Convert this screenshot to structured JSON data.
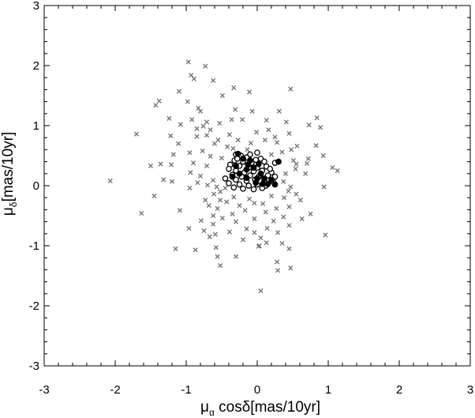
{
  "chart_data": {
    "type": "scatter",
    "title": "",
    "xlabel": {
      "greek": "μ",
      "sub": "α",
      "rest": " cosδ[mas/10yr]"
    },
    "ylabel": {
      "greek": "μ",
      "sub": "δ",
      "rest": "[mas/10yr]"
    },
    "xlim": [
      -3,
      3
    ],
    "ylim": [
      -3,
      3
    ],
    "x_ticks": [
      "-3",
      "-2",
      "-1",
      "0",
      "1",
      "2",
      "3"
    ],
    "y_ticks": [
      "-3",
      "-2",
      "-1",
      "0",
      "1",
      "2",
      "3"
    ],
    "grid": false,
    "series": [
      {
        "marker": "x",
        "color": "#777777",
        "points": [
          [
            -0.97,
            2.06
          ],
          [
            -0.73,
            1.99
          ],
          [
            -0.93,
            1.84
          ],
          [
            -0.89,
            1.78
          ],
          [
            -0.62,
            1.75
          ],
          [
            -0.33,
            1.63
          ],
          [
            0.47,
            1.61
          ],
          [
            -0.11,
            1.56
          ],
          [
            -1.1,
            1.57
          ],
          [
            -0.49,
            1.5
          ],
          [
            -1.38,
            1.41
          ],
          [
            -0.98,
            1.4
          ],
          [
            -1.43,
            1.34
          ],
          [
            -0.83,
            1.29
          ],
          [
            -0.8,
            1.24
          ],
          [
            -0.31,
            1.27
          ],
          [
            -0.07,
            1.24
          ],
          [
            0.31,
            1.24
          ],
          [
            0.84,
            1.13
          ],
          [
            -1.24,
            1.12
          ],
          [
            -0.92,
            1.1
          ],
          [
            -0.36,
            1.1
          ],
          [
            -0.21,
            1.1
          ],
          [
            0.13,
            1.09
          ],
          [
            0.41,
            1.06
          ],
          [
            0.73,
            1.01
          ],
          [
            -0.71,
            1.06
          ],
          [
            -0.53,
            1.04
          ],
          [
            -1.08,
            1.02
          ],
          [
            0.89,
            0.97
          ],
          [
            -0.85,
            0.95
          ],
          [
            -0.76,
            0.99
          ],
          [
            -0.66,
            0.93
          ],
          [
            0.16,
            0.93
          ],
          [
            -0.01,
            0.89
          ],
          [
            0.45,
            0.87
          ],
          [
            -0.39,
            0.85
          ],
          [
            -1.7,
            0.86
          ],
          [
            -1.22,
            0.83
          ],
          [
            -0.71,
            0.84
          ],
          [
            0.25,
            0.81
          ],
          [
            -0.85,
            0.82
          ],
          [
            0.11,
            0.76
          ],
          [
            -0.55,
            0.76
          ],
          [
            -0.27,
            0.76
          ],
          [
            -0.6,
            0.7
          ],
          [
            -1.11,
            0.7
          ],
          [
            0.28,
            0.72
          ],
          [
            -0.09,
            0.71
          ],
          [
            0.56,
            0.66
          ],
          [
            -0.42,
            0.65
          ],
          [
            0.83,
            0.67
          ],
          [
            -0.34,
            0.62
          ],
          [
            0.48,
            0.6
          ],
          [
            -0.14,
            0.6
          ],
          [
            -0.77,
            0.58
          ],
          [
            0.35,
            0.56
          ],
          [
            -0.95,
            0.55
          ],
          [
            -1.18,
            0.52
          ],
          [
            0.2,
            0.52
          ],
          [
            -0.66,
            0.49
          ],
          [
            -0.5,
            0.46
          ],
          [
            0.93,
            0.5
          ],
          [
            0.72,
            0.45
          ],
          [
            0.51,
            0.42
          ],
          [
            0.55,
            0.36
          ],
          [
            -1.36,
            0.36
          ],
          [
            -1.5,
            0.33
          ],
          [
            -0.9,
            0.38
          ],
          [
            -1.21,
            0.35
          ],
          [
            -0.71,
            0.33
          ],
          [
            0.7,
            0.37
          ],
          [
            1.06,
            0.3
          ],
          [
            0.54,
            0.28
          ],
          [
            1.13,
            0.25
          ],
          [
            -0.94,
            0.22
          ],
          [
            0.68,
            0.2
          ],
          [
            0.4,
            0.2
          ],
          [
            -0.8,
            0.16
          ],
          [
            -1.32,
            0.1
          ],
          [
            -1.2,
            0.07
          ],
          [
            -2.07,
            0.08
          ],
          [
            -0.62,
            0.09
          ],
          [
            0.37,
            0.07
          ],
          [
            -0.84,
            0.05
          ],
          [
            -0.7,
            0.01
          ],
          [
            -0.57,
            -0.02
          ],
          [
            0.47,
            -0.02
          ],
          [
            0.94,
            -0.02
          ],
          [
            -0.45,
            -0.04
          ],
          [
            -0.95,
            -0.04
          ],
          [
            -0.52,
            -0.1
          ],
          [
            0.44,
            -0.09
          ],
          [
            -0.61,
            -0.14
          ],
          [
            -1.45,
            -0.17
          ],
          [
            0.55,
            -0.14
          ],
          [
            -0.33,
            -0.19
          ],
          [
            0.2,
            -0.17
          ],
          [
            0.38,
            -0.2
          ],
          [
            -0.11,
            -0.22
          ],
          [
            -0.73,
            -0.24
          ],
          [
            -0.52,
            -0.24
          ],
          [
            0.61,
            -0.24
          ],
          [
            -0.43,
            -0.27
          ],
          [
            -0.04,
            -0.29
          ],
          [
            0.08,
            -0.3
          ],
          [
            -0.68,
            -0.33
          ],
          [
            -0.25,
            -0.33
          ],
          [
            0.45,
            -0.35
          ],
          [
            -0.56,
            -0.38
          ],
          [
            0.27,
            -0.38
          ],
          [
            -1.09,
            -0.41
          ],
          [
            -0.17,
            -0.41
          ],
          [
            0.12,
            -0.44
          ],
          [
            -1.63,
            -0.46
          ],
          [
            0.75,
            -0.47
          ],
          [
            -0.35,
            -0.47
          ],
          [
            -0.62,
            -0.5
          ],
          [
            0.37,
            -0.52
          ],
          [
            -0.49,
            -0.54
          ],
          [
            -0.04,
            -0.55
          ],
          [
            0.63,
            -0.55
          ],
          [
            -0.79,
            -0.58
          ],
          [
            0.23,
            -0.59
          ],
          [
            -0.3,
            -0.6
          ],
          [
            -0.62,
            -0.64
          ],
          [
            0.45,
            -0.66
          ],
          [
            -0.96,
            -0.71
          ],
          [
            -0.15,
            -0.72
          ],
          [
            0.14,
            -0.71
          ],
          [
            -0.75,
            -0.75
          ],
          [
            -0.39,
            -0.77
          ],
          [
            -0.04,
            -0.78
          ],
          [
            0.29,
            -0.78
          ],
          [
            0.96,
            -0.82
          ],
          [
            -0.59,
            -0.81
          ],
          [
            -0.67,
            -0.85
          ],
          [
            0.05,
            -0.87
          ],
          [
            -0.2,
            -0.9
          ],
          [
            0.13,
            -0.95
          ],
          [
            0.35,
            -0.96
          ],
          [
            0.03,
            -1.0
          ],
          [
            -0.58,
            -1.03
          ],
          [
            -0.87,
            -1.07
          ],
          [
            0.45,
            -1.05
          ],
          [
            -1.15,
            -1.05
          ],
          [
            0.02,
            -1.01
          ],
          [
            -0.56,
            -1.18
          ],
          [
            -0.3,
            -1.18
          ],
          [
            0.28,
            -1.27
          ],
          [
            -0.52,
            -1.33
          ],
          [
            0.47,
            -1.37
          ],
          [
            0.29,
            -1.41
          ],
          [
            0.05,
            -1.75
          ]
        ]
      },
      {
        "marker": "open-circle",
        "color": "#000000",
        "points": [
          [
            -0.3,
            0.52
          ],
          [
            -0.23,
            0.5
          ],
          [
            -0.1,
            0.52
          ],
          [
            0.0,
            0.55
          ],
          [
            -0.15,
            0.47
          ],
          [
            0.05,
            0.45
          ],
          [
            -0.32,
            0.42
          ],
          [
            -0.2,
            0.4
          ],
          [
            -0.08,
            0.38
          ],
          [
            0.1,
            0.4
          ],
          [
            0.25,
            0.38
          ],
          [
            -0.38,
            0.35
          ],
          [
            -0.25,
            0.33
          ],
          [
            -0.12,
            0.3
          ],
          [
            0.0,
            0.3
          ],
          [
            0.13,
            0.32
          ],
          [
            -0.4,
            0.28
          ],
          [
            -0.3,
            0.25
          ],
          [
            -0.18,
            0.22
          ],
          [
            -0.05,
            0.24
          ],
          [
            0.07,
            0.25
          ],
          [
            0.2,
            0.22
          ],
          [
            -0.35,
            0.18
          ],
          [
            -0.22,
            0.15
          ],
          [
            -0.1,
            0.17
          ],
          [
            0.02,
            0.15
          ],
          [
            0.15,
            0.17
          ],
          [
            0.25,
            0.15
          ],
          [
            -0.45,
            0.12
          ],
          [
            -0.3,
            0.1
          ],
          [
            -0.15,
            0.08
          ],
          [
            -0.03,
            0.1
          ],
          [
            0.1,
            0.08
          ],
          [
            0.22,
            0.07
          ],
          [
            -0.4,
            0.04
          ],
          [
            -0.25,
            0.02
          ],
          [
            -0.12,
            0.0
          ],
          [
            0.0,
            0.02
          ],
          [
            0.12,
            0.0
          ],
          [
            -0.33,
            -0.03
          ],
          [
            -0.2,
            -0.05
          ],
          [
            -0.05,
            -0.06
          ],
          [
            0.07,
            -0.04
          ],
          [
            -0.28,
            0.45
          ],
          [
            0.18,
            0.28
          ],
          [
            -0.02,
            0.43
          ]
        ]
      },
      {
        "marker": "filled-circle",
        "color": "#000000",
        "points": [
          [
            -0.27,
            0.53
          ],
          [
            -0.2,
            0.45
          ],
          [
            -0.1,
            0.42
          ],
          [
            -0.3,
            0.33
          ],
          [
            -0.05,
            0.3
          ],
          [
            -0.15,
            0.27
          ],
          [
            0.02,
            0.36
          ],
          [
            -0.25,
            0.2
          ],
          [
            -0.35,
            0.15
          ],
          [
            0.05,
            0.2
          ],
          [
            0.1,
            0.12
          ],
          [
            -0.15,
            0.13
          ],
          [
            0.2,
            0.1
          ],
          [
            -0.02,
            0.05
          ],
          [
            0.08,
            0.03
          ],
          [
            0.15,
            0.03
          ],
          [
            0.25,
            0.02
          ],
          [
            0.3,
            0.4
          ],
          [
            -0.13,
            0.35
          ],
          [
            0.0,
            0.12
          ]
        ]
      }
    ]
  }
}
